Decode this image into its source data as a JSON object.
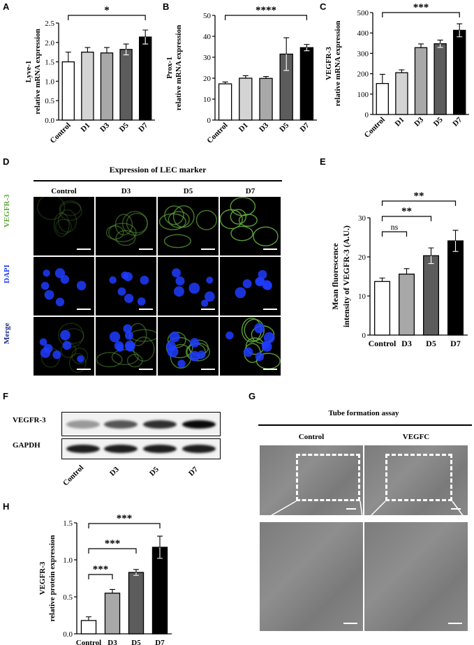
{
  "figure": {
    "panel_labels": {
      "A": "A",
      "B": "B",
      "C": "C",
      "D": "D",
      "E": "E",
      "F": "F",
      "G": "G",
      "H": "H"
    },
    "colors": {
      "control": "#ffffff",
      "d1": "#d4d4d4",
      "d3": "#a8a8a8",
      "d5": "#5c5c5c",
      "d7": "#000000",
      "vegfr3_stain": "#5fa63a",
      "dapi_stain": "#1f3cff",
      "merge_label": "#1d2f8a"
    },
    "panel_d": {
      "title": "Expression of LEC marker",
      "columns": [
        "Control",
        "D3",
        "D5",
        "D7"
      ],
      "rows": [
        "VEGFR-3",
        "DAPI",
        "Merge"
      ]
    },
    "panel_f": {
      "rows": [
        "VEGFR-3",
        "GAPDH"
      ],
      "lanes": [
        "Control",
        "D3",
        "D5",
        "D7"
      ],
      "vegfr3_band_intensity": [
        0.25,
        0.6,
        0.8,
        1.0
      ],
      "gapdh_band_intensity": [
        0.9,
        0.9,
        0.9,
        0.9
      ]
    },
    "panel_g": {
      "title": "Tube formation assay",
      "columns": [
        "Control",
        "VEGFC"
      ]
    }
  },
  "chart_data": [
    {
      "id": "A",
      "type": "bar",
      "categories": [
        "Control",
        "D1",
        "D3",
        "D5",
        "D7"
      ],
      "values": [
        1.5,
        1.75,
        1.73,
        1.82,
        2.14
      ],
      "errors": [
        0.25,
        0.12,
        0.14,
        0.14,
        0.18
      ],
      "ylabel": [
        "Lyve-1",
        "relative mRNA expression"
      ],
      "ylim": [
        0,
        2.5
      ],
      "yticks": [
        "0.0",
        "0.5",
        "1.0",
        "1.5",
        "2.0",
        "2.5"
      ],
      "significance": [
        {
          "from": 0,
          "to": 4,
          "label": "*"
        }
      ]
    },
    {
      "id": "B",
      "type": "bar",
      "categories": [
        "Control",
        "D1",
        "D3",
        "D5",
        "D7"
      ],
      "values": [
        17.3,
        20.0,
        19.9,
        31.5,
        34.6
      ],
      "errors": [
        0.9,
        1.2,
        0.9,
        7.8,
        1.5
      ],
      "ylabel": [
        "Prox-1",
        "relative mRNA expression"
      ],
      "ylim": [
        0,
        50
      ],
      "yticks": [
        "0",
        "10",
        "20",
        "30",
        "40",
        "50"
      ],
      "significance": [
        {
          "from": 0,
          "to": 4,
          "label": "****"
        }
      ]
    },
    {
      "id": "C",
      "type": "bar",
      "categories": [
        "Control",
        "D1",
        "D3",
        "D5",
        "D7"
      ],
      "values": [
        152,
        205,
        328,
        347,
        413
      ],
      "errors": [
        45,
        14,
        18,
        18,
        32
      ],
      "ylabel": [
        "VEGFR-3",
        "relative mRNA expression"
      ],
      "ylim": [
        0,
        500
      ],
      "yticks": [
        "0",
        "100",
        "200",
        "300",
        "400",
        "500"
      ],
      "significance": [
        {
          "from": 0,
          "to": 4,
          "label": "***"
        }
      ]
    },
    {
      "id": "E",
      "type": "bar",
      "categories": [
        "Control",
        "D3",
        "D5",
        "D7"
      ],
      "values": [
        13.7,
        15.6,
        20.3,
        24.1
      ],
      "errors": [
        0.9,
        1.4,
        2.0,
        2.7
      ],
      "ylabel": [
        "Mean fluorescence",
        "intensity of VEGFR-3 (A.U.)"
      ],
      "ylim": [
        0,
        30
      ],
      "yticks": [
        "0",
        "10",
        "20",
        "30"
      ],
      "significance": [
        {
          "from": 0,
          "to": 1,
          "label": "ns"
        },
        {
          "from": 0,
          "to": 2,
          "label": "**"
        },
        {
          "from": 0,
          "to": 3,
          "label": "**"
        }
      ]
    },
    {
      "id": "H",
      "type": "bar",
      "categories": [
        "Control",
        "D3",
        "D5",
        "D7"
      ],
      "values": [
        0.18,
        0.55,
        0.83,
        1.17
      ],
      "errors": [
        0.05,
        0.05,
        0.04,
        0.15
      ],
      "ylabel": [
        "VEGFR-3",
        "relative protein expression"
      ],
      "ylim": [
        0,
        1.5
      ],
      "yticks": [
        "0.0",
        "0.5",
        "1.0",
        "1.5"
      ],
      "significance": [
        {
          "from": 0,
          "to": 1,
          "label": "***"
        },
        {
          "from": 0,
          "to": 2,
          "label": "***"
        },
        {
          "from": 0,
          "to": 3,
          "label": "***"
        }
      ]
    }
  ]
}
